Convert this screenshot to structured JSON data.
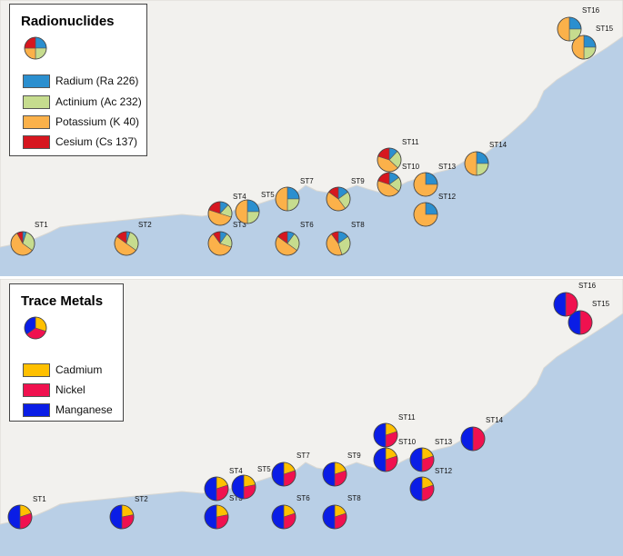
{
  "colors": {
    "land": "#f2f1ee",
    "sea": "#b9cfe6",
    "radium": "#2b8fcf",
    "actinium": "#c6dc8e",
    "potassium": "#fbb14a",
    "cesium": "#d6161f",
    "cadmium": "#ffc000",
    "nickel": "#f0114f",
    "manganese": "#0a1de6"
  },
  "radionuclides": {
    "title": "Radionuclides",
    "legend": [
      {
        "label": "Radium (Ra 226)",
        "color_key": "radium"
      },
      {
        "label": "Actinium (Ac 232)",
        "color_key": "actinium"
      },
      {
        "label": "Potassium (K 40)",
        "color_key": "potassium"
      },
      {
        "label": "Cesium (Cs 137)",
        "color_key": "cesium"
      }
    ]
  },
  "trace_metals": {
    "title": "Trace Metals",
    "legend": [
      {
        "label": "Cadmium",
        "color_key": "cadmium"
      },
      {
        "label": "Nickel",
        "color_key": "nickel"
      },
      {
        "label": "Manganese",
        "color_key": "manganese"
      }
    ]
  },
  "stations": [
    {
      "id": "ST1",
      "radionuclides": [
        0.05,
        0.3,
        0.57,
        0.08
      ],
      "trace_metals": [
        0.2,
        0.3,
        0.5
      ]
    },
    {
      "id": "ST2",
      "radionuclides": [
        0.05,
        0.3,
        0.5,
        0.15
      ],
      "trace_metals": [
        0.22,
        0.28,
        0.5
      ]
    },
    {
      "id": "ST3",
      "radionuclides": [
        0.1,
        0.2,
        0.6,
        0.1
      ],
      "trace_metals": [
        0.22,
        0.28,
        0.5
      ]
    },
    {
      "id": "ST4",
      "radionuclides": [
        0.12,
        0.18,
        0.5,
        0.2
      ],
      "trace_metals": [
        0.2,
        0.3,
        0.5
      ]
    },
    {
      "id": "ST5",
      "radionuclides": [
        0.25,
        0.25,
        0.5,
        0
      ],
      "trace_metals": [
        0.22,
        0.28,
        0.5
      ]
    },
    {
      "id": "ST6",
      "radionuclides": [
        0.1,
        0.25,
        0.5,
        0.15
      ],
      "trace_metals": [
        0.2,
        0.3,
        0.5
      ]
    },
    {
      "id": "ST7",
      "radionuclides": [
        0.25,
        0.25,
        0.5,
        0
      ],
      "trace_metals": [
        0.2,
        0.3,
        0.5
      ]
    },
    {
      "id": "ST8",
      "radionuclides": [
        0.15,
        0.3,
        0.45,
        0.1
      ],
      "trace_metals": [
        0.2,
        0.3,
        0.5
      ]
    },
    {
      "id": "ST9",
      "radionuclides": [
        0.15,
        0.25,
        0.45,
        0.15
      ],
      "trace_metals": [
        0.2,
        0.3,
        0.5
      ]
    },
    {
      "id": "ST10",
      "radionuclides": [
        0.15,
        0.2,
        0.45,
        0.2
      ],
      "trace_metals": [
        0.2,
        0.3,
        0.5
      ]
    },
    {
      "id": "ST11",
      "radionuclides": [
        0.12,
        0.25,
        0.43,
        0.2
      ],
      "trace_metals": [
        0.2,
        0.3,
        0.5
      ]
    },
    {
      "id": "ST12",
      "radionuclides": [
        0.25,
        0,
        0.75,
        0
      ],
      "trace_metals": [
        0.2,
        0.3,
        0.5
      ]
    },
    {
      "id": "ST13",
      "radionuclides": [
        0.25,
        0,
        0.75,
        0
      ],
      "trace_metals": [
        0.2,
        0.3,
        0.5
      ]
    },
    {
      "id": "ST14",
      "radionuclides": [
        0.25,
        0.25,
        0.5,
        0
      ],
      "trace_metals": [
        0,
        0.5,
        0.5
      ]
    },
    {
      "id": "ST15",
      "radionuclides": [
        0.25,
        0.25,
        0.5,
        0
      ],
      "trace_metals": [
        0,
        0.5,
        0.5
      ]
    },
    {
      "id": "ST16",
      "radionuclides": [
        0.25,
        0.25,
        0.5,
        0
      ],
      "trace_metals": [
        0,
        0.5,
        0.5
      ]
    }
  ]
}
